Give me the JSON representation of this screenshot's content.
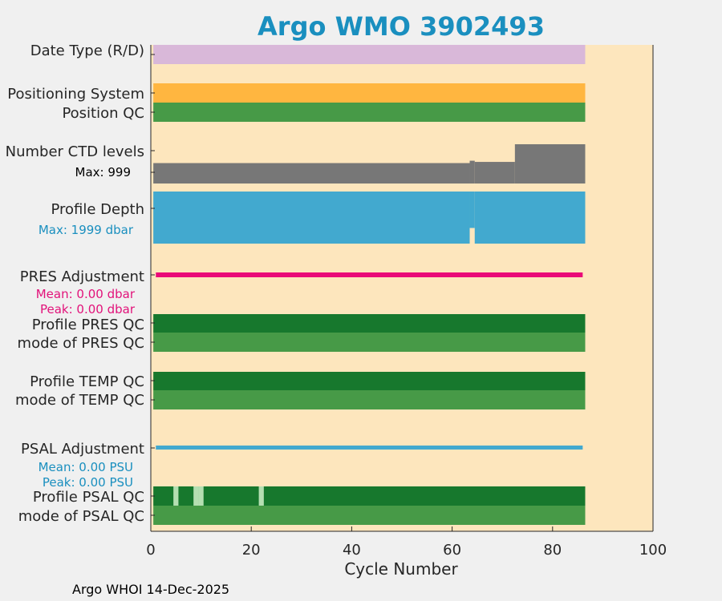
{
  "colors": {
    "background": "#f0f0f0",
    "plot_background": "#fde6bd",
    "date_type": "#d9b8d9",
    "positioning": "#ffb640",
    "qc_good": "#479a47",
    "qc_dark": "#17782d",
    "qc_light": "#b5dfb2",
    "ctd": "#777777",
    "depth": "#42a9cf",
    "pres_adj": "#ea0a78",
    "psal_adj": "#42a9cf",
    "title": "#1a8fbf",
    "cyan_text": "#1a8fbf",
    "magenta_text": "#e2127a"
  },
  "chart_data": {
    "type": "bar",
    "title": "Argo WMO 3902493",
    "xlabel": "Cycle Number",
    "xlim": [
      0,
      100
    ],
    "xticks": [
      0,
      20,
      40,
      60,
      80,
      100
    ],
    "n_cycles": 86,
    "rows": [
      {
        "label": "Date Type (R/D)",
        "value": "R for all cycles"
      },
      {
        "label": "Positioning System",
        "value": "uniform for all cycles"
      },
      {
        "label": "Position QC",
        "value": "good for all cycles"
      },
      {
        "label": "Number CTD levels",
        "max_label": "Max: 999",
        "cycle_start": 0.5,
        "cycle_end": 86.5,
        "values": [
          {
            "from": 0.5,
            "to": 63.5,
            "level": 0.52
          },
          {
            "from": 63.5,
            "to": 64.5,
            "level": 0.58
          },
          {
            "from": 64.5,
            "to": 72.5,
            "level": 0.55
          },
          {
            "from": 72.5,
            "to": 86.5,
            "level": 1.0
          }
        ]
      },
      {
        "label": "Profile Depth",
        "max_label": "Max: 1999 dbar",
        "cycle_start": 0.5,
        "cycle_end": 86.5,
        "dip_cycle": 64,
        "dip_level": 0.7
      },
      {
        "label": "PRES Adjustment",
        "mean_label": "Mean: 0.00 dbar",
        "peak_label": "Peak: 0.00 dbar",
        "mean": 0.0,
        "peak": 0.0
      },
      {
        "label": "Profile PRES QC",
        "value": "A for all cycles"
      },
      {
        "label": "mode of PRES QC",
        "value": "1 for all cycles"
      },
      {
        "label": "Profile TEMP QC",
        "value": "A for all cycles"
      },
      {
        "label": "mode of TEMP QC",
        "value": "1 for all cycles"
      },
      {
        "label": "PSAL Adjustment",
        "mean_label": "Mean: 0.00 PSU",
        "peak_label": "Peak: 0.00 PSU",
        "mean": 0.0,
        "peak": 0.0
      },
      {
        "label": "Profile PSAL QC",
        "value": "A except cycles 5, 9, 10, 22",
        "flagged_cycles": [
          5,
          9,
          10,
          22
        ]
      },
      {
        "label": "mode of PSAL QC",
        "value": "1 for all cycles"
      }
    ]
  },
  "footer": "Argo WHOI 14-Dec-2025"
}
